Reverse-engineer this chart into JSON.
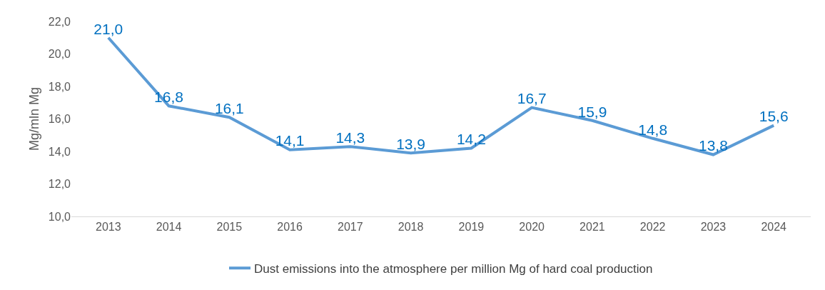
{
  "chart_data": {
    "type": "line",
    "categories": [
      "2013",
      "2014",
      "2015",
      "2016",
      "2017",
      "2018",
      "2019",
      "2020",
      "2021",
      "2022",
      "2023",
      "2024"
    ],
    "series": [
      {
        "name": "Dust emissions into the atmosphere per million Mg of hard coal production",
        "color": "#5b9bd5",
        "values": [
          21.0,
          16.8,
          16.1,
          14.1,
          14.3,
          13.9,
          14.2,
          16.7,
          15.9,
          14.8,
          13.8,
          15.6
        ],
        "value_labels": [
          "21,0",
          "16,8",
          "16,1",
          "14,1",
          "14,3",
          "13,9",
          "14,2",
          "16,7",
          "15,9",
          "14,8",
          "13,8",
          "15,6"
        ]
      }
    ],
    "ylabel": "Mg/mln Mg",
    "ylim": [
      10,
      22
    ],
    "yticks": [
      {
        "value": 10,
        "label": "10,0"
      },
      {
        "value": 12,
        "label": "12,0"
      },
      {
        "value": 14,
        "label": "14,0"
      },
      {
        "value": 16,
        "label": "16,0"
      },
      {
        "value": 18,
        "label": "18,0"
      },
      {
        "value": 20,
        "label": "20,0"
      },
      {
        "value": 22,
        "label": "22,0"
      }
    ],
    "grid": false,
    "legend": "bottom",
    "marker": "none",
    "line_style": "solid"
  }
}
